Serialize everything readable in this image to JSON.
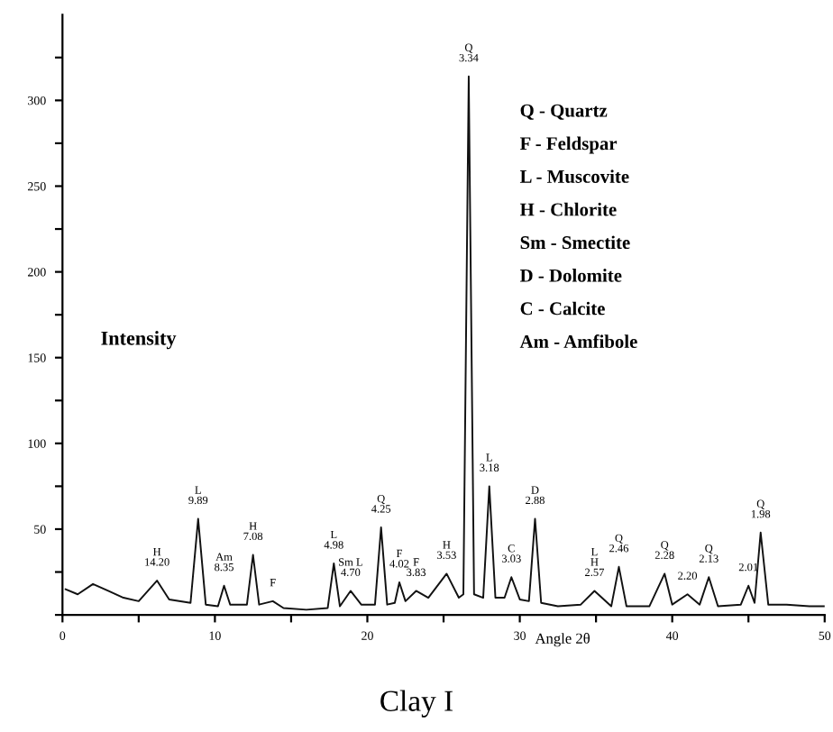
{
  "chart_data": {
    "type": "line",
    "title": "Clay I",
    "xlabel": "Angle 2θ",
    "ylabel": "Intensity",
    "color": "#111111",
    "grid": false,
    "marker": "none",
    "line_style": "solid",
    "xlim": [
      0,
      50
    ],
    "ylim": [
      0,
      350
    ],
    "xticks": [
      0,
      {
        "value": 5,
        "label": null
      },
      10,
      {
        "value": 15,
        "label": null
      },
      20,
      {
        "value": 25,
        "label": null
      },
      30,
      {
        "value": 35,
        "label": null
      },
      40,
      {
        "value": 45,
        "label": null
      },
      50
    ],
    "yticks": [
      {
        "value": 0,
        "label": null
      },
      {
        "value": 25,
        "label": null
      },
      50,
      {
        "value": 75,
        "label": null
      },
      100,
      {
        "value": 125,
        "label": null
      },
      150,
      {
        "value": 175,
        "label": null
      },
      200,
      {
        "value": 225,
        "label": null
      },
      250,
      {
        "value": 275,
        "label": null
      },
      300,
      {
        "value": 325,
        "label": null
      }
    ],
    "x": [
      0.2,
      1.0,
      2.0,
      3.0,
      4.0,
      5.0,
      6.2,
      7.0,
      8.4,
      8.9,
      9.4,
      10.2,
      10.6,
      11.0,
      12.1,
      12.5,
      12.9,
      13.8,
      14.5,
      16.0,
      17.4,
      17.8,
      18.2,
      18.9,
      19.6,
      20.5,
      20.9,
      21.3,
      21.8,
      22.1,
      22.5,
      23.2,
      24.0,
      25.2,
      26.0,
      26.3,
      26.65,
      27.0,
      27.6,
      28.0,
      28.4,
      29.0,
      29.45,
      30.0,
      30.6,
      31.0,
      31.4,
      32.5,
      34.0,
      34.9,
      36.0,
      36.5,
      37.0,
      38.5,
      39.5,
      40.0,
      41.0,
      41.8,
      42.4,
      43.0,
      44.5,
      45.0,
      45.4,
      45.8,
      46.3,
      47.5,
      49.0,
      50.0
    ],
    "values": [
      15,
      12,
      18,
      14,
      10,
      8,
      20,
      9,
      7,
      56,
      6,
      5,
      17,
      6,
      6,
      35,
      6,
      8,
      4,
      3,
      4,
      30,
      5,
      14,
      6,
      6,
      51,
      6,
      7,
      19,
      8,
      14,
      10,
      24,
      10,
      12,
      314,
      12,
      10,
      75,
      10,
      10,
      22,
      9,
      8,
      56,
      7,
      5,
      6,
      14,
      5,
      28,
      5,
      5,
      24,
      6,
      12,
      6,
      22,
      5,
      6,
      17,
      7,
      48,
      6,
      6,
      5,
      5
    ],
    "annotations": [
      {
        "text": "H\n14.20",
        "x": 6.2,
        "y": 20
      },
      {
        "text": "L\n9.89",
        "x": 8.9,
        "y": 56
      },
      {
        "text": "Am\n8.35",
        "x": 10.6,
        "y": 17
      },
      {
        "text": "H\n7.08",
        "x": 12.5,
        "y": 35
      },
      {
        "text": "F",
        "x": 13.8,
        "y": 8
      },
      {
        "text": "L\n4.98",
        "x": 17.8,
        "y": 30
      },
      {
        "text": "Sm L\n4.70",
        "x": 18.9,
        "y": 14
      },
      {
        "text": "Q\n4.25",
        "x": 20.9,
        "y": 51
      },
      {
        "text": "F\n4.02",
        "x": 22.1,
        "y": 19
      },
      {
        "text": "F\n3.83",
        "x": 23.2,
        "y": 14
      },
      {
        "text": "H\n3.53",
        "x": 25.2,
        "y": 24
      },
      {
        "text": "Q\n3.34",
        "x": 26.65,
        "y": 314
      },
      {
        "text": "L\n3.18",
        "x": 28.0,
        "y": 75
      },
      {
        "text": "C\n3.03",
        "x": 29.45,
        "y": 22
      },
      {
        "text": "D\n2.88",
        "x": 31.0,
        "y": 56
      },
      {
        "text": "L\nH\n2.57",
        "x": 34.9,
        "y": 14
      },
      {
        "text": "Q\n2.46",
        "x": 36.5,
        "y": 28
      },
      {
        "text": "Q\n2.28",
        "x": 39.5,
        "y": 24
      },
      {
        "text": "2.20",
        "x": 41.0,
        "y": 12
      },
      {
        "text": "Q\n2.13",
        "x": 42.4,
        "y": 22
      },
      {
        "text": "2.01",
        "x": 45.0,
        "y": 17
      },
      {
        "text": "Q\n1.98",
        "x": 45.8,
        "y": 48
      },
      "Q - Quartz",
      "F - Feldspar",
      "L - Muscovite",
      "H - Chlorite",
      "Sm - Smectite",
      "D - Dolomite",
      "C - Calcite",
      "Am - Amfibole"
    ]
  }
}
